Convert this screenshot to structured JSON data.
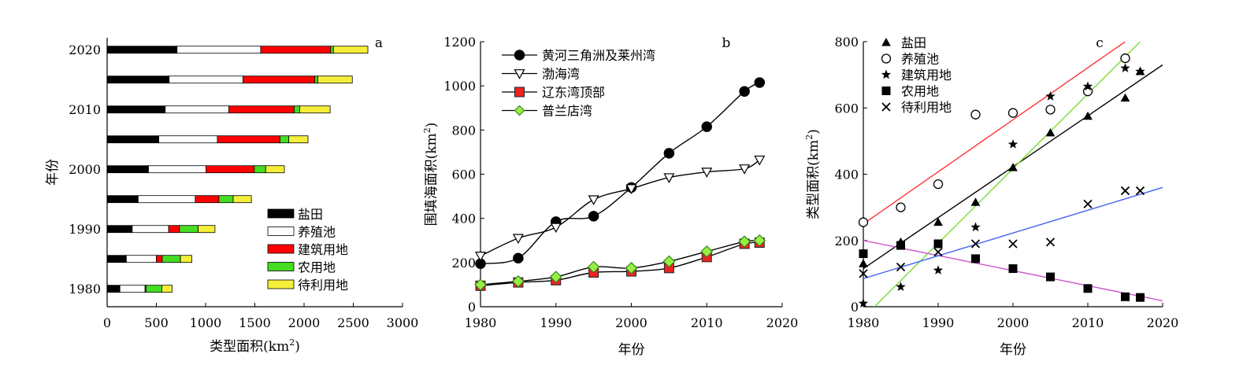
{
  "chart_data": [
    {
      "id": "a",
      "type": "bar",
      "orientation": "horizontal",
      "stacked": true,
      "panel_label": "a",
      "xlabel": "类型面积(km²)",
      "ylabel": "年份",
      "xlim": [
        0,
        3000
      ],
      "xticks": [
        0,
        500,
        1000,
        1500,
        2000,
        2500,
        3000
      ],
      "ylim": [
        1977,
        2022
      ],
      "yticks": [
        1980,
        1990,
        2000,
        2010,
        2020
      ],
      "categories": [
        1980,
        1985,
        1990,
        1995,
        2000,
        2005,
        2010,
        2015,
        2020
      ],
      "series": [
        {
          "name": "盐田",
          "color": "#000000",
          "values": [
            130,
            195,
            255,
            315,
            420,
            525,
            590,
            630,
            710
          ]
        },
        {
          "name": "养殖池",
          "color": "#ffffff",
          "values": [
            255,
            305,
            370,
            580,
            585,
            595,
            645,
            750,
            850
          ]
        },
        {
          "name": "建筑用地",
          "color": "#ff0000",
          "values": [
            10,
            60,
            110,
            240,
            490,
            635,
            665,
            730,
            710
          ]
        },
        {
          "name": "农用地",
          "color": "#44dd22",
          "values": [
            160,
            185,
            190,
            145,
            115,
            90,
            55,
            30,
            28
          ]
        },
        {
          "name": "待利用地",
          "color": "#f5ee3a",
          "values": [
            105,
            115,
            170,
            185,
            190,
            195,
            310,
            350,
            350
          ]
        }
      ],
      "legend": "bottom-right"
    },
    {
      "id": "b",
      "type": "line",
      "panel_label": "b",
      "xlabel": "年份",
      "ylabel": "围填海面积(km²)",
      "xlim": [
        1980,
        2020
      ],
      "xticks": [
        1980,
        1990,
        2000,
        2010,
        2020
      ],
      "ylim": [
        0,
        1200
      ],
      "yticks": [
        0,
        200,
        400,
        600,
        800,
        1000,
        1200
      ],
      "x": [
        1980,
        1985,
        1990,
        1995,
        2000,
        2005,
        2010,
        2015,
        2017
      ],
      "series": [
        {
          "name": "黄河三角洲及莱州湾",
          "color": "#000000",
          "marker": "circle",
          "values": [
            195,
            220,
            385,
            410,
            540,
            695,
            815,
            975,
            1015
          ]
        },
        {
          "name": "渤海湾",
          "color": "#000000",
          "marker": "triangle-down",
          "values": [
            230,
            310,
            360,
            485,
            535,
            585,
            610,
            625,
            665
          ]
        },
        {
          "name": "辽东湾顶部",
          "color": "#ee2222",
          "marker": "square",
          "values": [
            95,
            110,
            120,
            155,
            160,
            175,
            225,
            285,
            290
          ]
        },
        {
          "name": "普兰店湾",
          "color": "#99ee44",
          "marker": "diamond",
          "values": [
            100,
            115,
            135,
            180,
            175,
            205,
            250,
            295,
            300
          ]
        }
      ],
      "legend": "top-left"
    },
    {
      "id": "c",
      "type": "scatter",
      "panel_label": "c",
      "xlabel": "年份",
      "ylabel": "类型面积(km²)",
      "xlim": [
        1980,
        2020
      ],
      "xticks": [
        1980,
        1990,
        2000,
        2010,
        2020
      ],
      "ylim": [
        0,
        800
      ],
      "yticks": [
        0,
        200,
        400,
        600,
        800
      ],
      "x": [
        1980,
        1985,
        1990,
        1995,
        2000,
        2005,
        2010,
        2015,
        2017
      ],
      "series": [
        {
          "name": "盐田",
          "marker": "triangle",
          "values": [
            130,
            195,
            255,
            315,
            420,
            525,
            575,
            630,
            710
          ],
          "fit": {
            "color": "#000000",
            "x": [
              1980,
              2020
            ],
            "y": [
              115,
              730
            ]
          }
        },
        {
          "name": "养殖池",
          "marker": "circle-open",
          "values": [
            255,
            300,
            370,
            580,
            585,
            595,
            650,
            750,
            null
          ],
          "fit": {
            "color": "#ff3333",
            "x": [
              1980,
              2015
            ],
            "y": [
              250,
              800
            ]
          }
        },
        {
          "name": "建筑用地",
          "marker": "star",
          "values": [
            10,
            60,
            110,
            240,
            490,
            635,
            665,
            720,
            710
          ],
          "fit": {
            "color": "#77dd33",
            "x": [
              1981.5,
              2017
            ],
            "y": [
              0,
              800
            ]
          }
        },
        {
          "name": "农用地",
          "marker": "square",
          "values": [
            160,
            185,
            190,
            145,
            115,
            90,
            55,
            30,
            28
          ],
          "fit": {
            "color": "#cc55cc",
            "x": [
              1980,
              2020
            ],
            "y": [
              200,
              18
            ]
          }
        },
        {
          "name": "待利用地",
          "marker": "cross",
          "values": [
            100,
            120,
            165,
            190,
            190,
            195,
            310,
            350,
            350
          ],
          "fit": {
            "color": "#4466ee",
            "x": [
              1980,
              2020
            ],
            "y": [
              85,
              360
            ]
          }
        }
      ],
      "legend": "top-left"
    }
  ]
}
